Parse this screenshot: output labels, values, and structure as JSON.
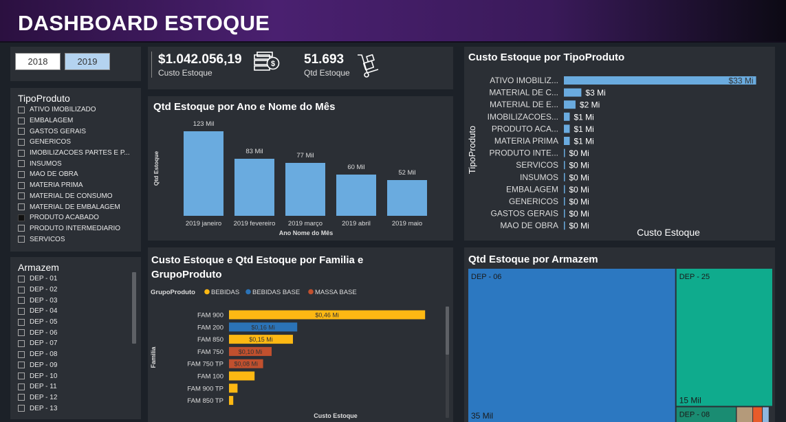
{
  "header": {
    "title": "DASHBOARD ESTOQUE"
  },
  "years": [
    {
      "label": "2018",
      "selected": false
    },
    {
      "label": "2019",
      "selected": true
    }
  ],
  "tipo_slicer": {
    "title": "TipoProduto",
    "items": [
      {
        "label": "ATIVO IMOBILIZADO",
        "checked": false
      },
      {
        "label": "EMBALAGEM",
        "checked": false
      },
      {
        "label": "GASTOS GERAIS",
        "checked": false
      },
      {
        "label": "GENERICOS",
        "checked": false
      },
      {
        "label": "IMOBILIZACOES PARTES E P...",
        "checked": false
      },
      {
        "label": "INSUMOS",
        "checked": false
      },
      {
        "label": "MAO DE OBRA",
        "checked": false
      },
      {
        "label": "MATERIA PRIMA",
        "checked": false
      },
      {
        "label": "MATERIAL DE CONSUMO",
        "checked": false
      },
      {
        "label": "MATERIAL DE EMBALAGEM",
        "checked": false
      },
      {
        "label": "PRODUTO ACABADO",
        "checked": true
      },
      {
        "label": "PRODUTO INTERMEDIARIO",
        "checked": false
      },
      {
        "label": "SERVICOS",
        "checked": false
      }
    ]
  },
  "armazem_slicer": {
    "title": "Armazem",
    "items": [
      "DEP - 01",
      "DEP - 02",
      "DEP - 03",
      "DEP - 04",
      "DEP - 05",
      "DEP - 06",
      "DEP - 07",
      "DEP - 08",
      "DEP - 09",
      "DEP - 10",
      "DEP - 11",
      "DEP - 12",
      "DEP - 13"
    ]
  },
  "kpis": {
    "custo": {
      "value": "$1.042.056,19",
      "label": "Custo Estoque",
      "icon": "money-stack-icon"
    },
    "qtd": {
      "value": "51.693",
      "label": "Qtd Estoque",
      "icon": "hand-truck-icon"
    }
  },
  "colors": {
    "bar": "#6aabdf",
    "bebidas": "#fdb813",
    "bebidas_base": "#2b73b7",
    "massa_base": "#c1502e",
    "treemap_blue": "#2c78c1",
    "treemap_teal": "#0fab8d"
  },
  "chart_data": [
    {
      "id": "qtd_mes",
      "type": "bar",
      "title": "Qtd Estoque por Ano e Nome do Mês",
      "xlabel": "Ano Nome do Mês",
      "ylabel": "Qtd Estoque",
      "categories": [
        "2019 janeiro",
        "2019 fevereiro",
        "2019 março",
        "2019 abril",
        "2019 maio"
      ],
      "values": [
        123,
        83,
        77,
        60,
        52
      ],
      "labels": [
        "123 Mil",
        "83 Mil",
        "77 Mil",
        "60 Mil",
        "52 Mil"
      ],
      "ylim": [
        0,
        130
      ]
    },
    {
      "id": "custo_tipo",
      "type": "bar",
      "orientation": "horizontal",
      "title": "Custo Estoque por TipoProduto",
      "xlabel": "Custo Estoque",
      "ylabel": "TipoProduto",
      "categories": [
        "ATIVO IMOBILIZ...",
        "MATERIAL DE C...",
        "MATERIAL DE E...",
        "IMOBILIZACOES...",
        "PRODUTO ACA...",
        "MATERIA PRIMA",
        "PRODUTO INTE...",
        "SERVICOS",
        "INSUMOS",
        "EMBALAGEM",
        "GENERICOS",
        "GASTOS GERAIS",
        "MAO DE OBRA"
      ],
      "values": [
        33,
        3,
        2,
        1,
        1,
        1,
        0,
        0,
        0,
        0,
        0,
        0,
        0
      ],
      "labels": [
        "$33 Mi",
        "$3 Mi",
        "$2 Mi",
        "$1 Mi",
        "$1 Mi",
        "$1 Mi",
        "$0 Mi",
        "$0 Mi",
        "$0 Mi",
        "$0 Mi",
        "$0 Mi",
        "$0 Mi",
        "$0 Mi"
      ],
      "xlim": [
        0,
        34
      ]
    },
    {
      "id": "custo_familia",
      "type": "bar",
      "orientation": "horizontal",
      "title": "Custo Estoque e Qtd Estoque por Familia e GrupoProduto",
      "xlabel": "Custo Estoque",
      "ylabel": "Familia",
      "legend_title": "GrupoProduto",
      "legend": [
        {
          "name": "BEBIDAS",
          "color": "#fdb813"
        },
        {
          "name": "BEBIDAS BASE",
          "color": "#2b73b7"
        },
        {
          "name": "MASSA BASE",
          "color": "#c1502e"
        }
      ],
      "categories": [
        "FAM 900",
        "FAM 200",
        "FAM 850",
        "FAM 750",
        "FAM 750 TP",
        "FAM 100",
        "FAM 900 TP",
        "FAM 850 TP"
      ],
      "values": [
        0.46,
        0.16,
        0.15,
        0.1,
        0.08,
        0.06,
        0.02,
        0.01
      ],
      "groups": [
        "BEBIDAS",
        "BEBIDAS BASE",
        "BEBIDAS",
        "MASSA BASE",
        "MASSA BASE",
        "BEBIDAS",
        "BEBIDAS",
        "BEBIDAS"
      ],
      "labels": [
        "$0,46 Mi",
        "$0,16 Mi",
        "$0,15 Mi",
        "$0,10 Mi",
        "$0,08 Mi",
        "",
        "",
        ""
      ],
      "xlim": [
        0,
        0.5
      ]
    },
    {
      "id": "qtd_armazem",
      "type": "treemap",
      "title": "Qtd Estoque por Armazem",
      "items": [
        {
          "name": "DEP - 06",
          "value": 35,
          "label": "35 Mil",
          "color": "#2c78c1"
        },
        {
          "name": "DEP - 25",
          "value": 15,
          "label": "15 Mil",
          "color": "#0fab8d"
        },
        {
          "name": "DEP - 08",
          "value": 1.1,
          "label": "",
          "color": "#1a8c72"
        }
      ]
    }
  ]
}
